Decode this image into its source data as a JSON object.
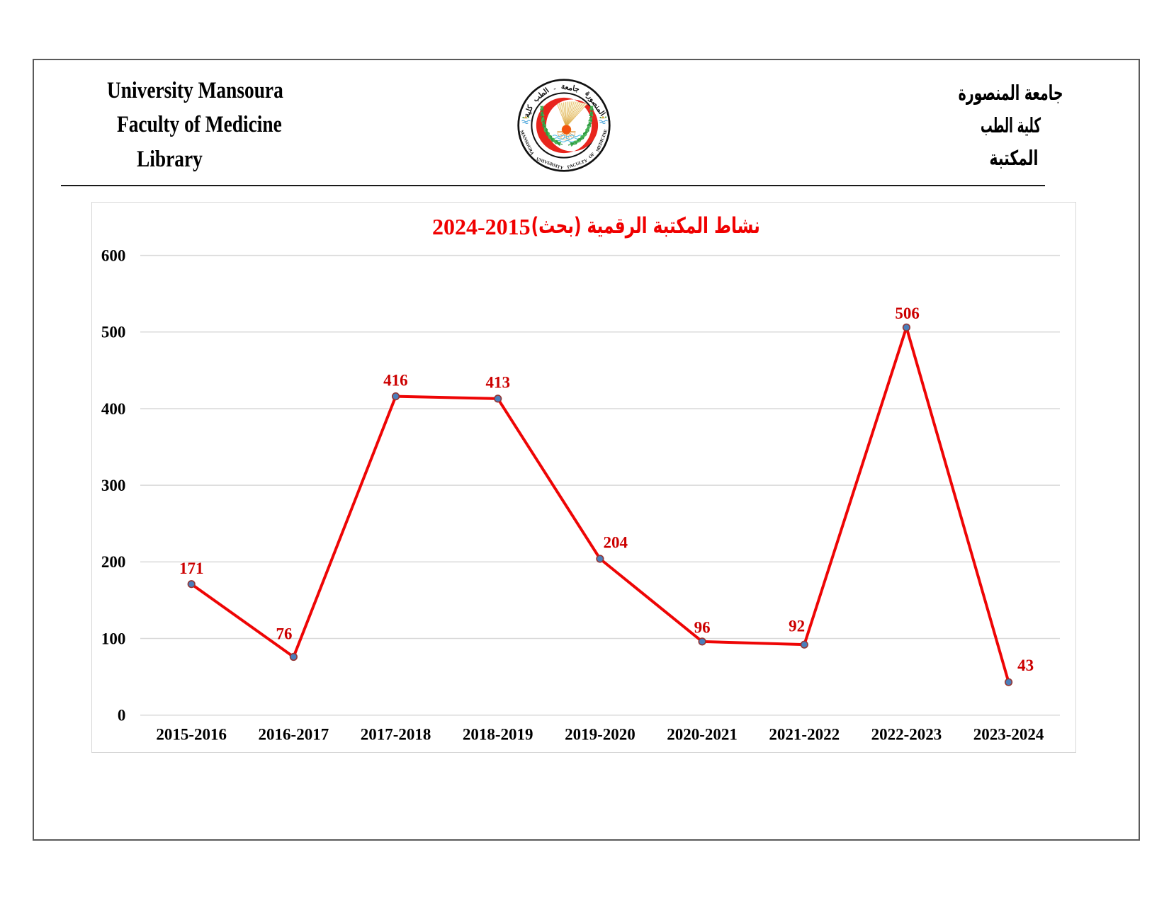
{
  "header": {
    "left_lines": [
      "University Mansoura",
      "Faculty of Medicine",
      "Library"
    ],
    "right_lines": [
      "جامعة المنصورة",
      "كلية الطب",
      "المكتبة"
    ],
    "logo": {
      "arc_text_top": "كلية الطب - جامعة المنصورة",
      "arc_text_bottom": "MANSOURA UNIVERSITY FACULTY OF MEDICINE"
    }
  },
  "chart_data": {
    "type": "line",
    "title": "نشاط المكتبة الرقمية (بحث) 2015-2024",
    "categories": [
      "2015-2016",
      "2016-2017",
      "2017-2018",
      "2018-2019",
      "2019-2020",
      "2020-2021",
      "2021-2022",
      "2022-2023",
      "2023-2024"
    ],
    "values": [
      171,
      76,
      416,
      413,
      204,
      96,
      92,
      506,
      43
    ],
    "y_ticks": [
      0,
      100,
      200,
      300,
      400,
      500,
      600
    ],
    "ylim": [
      0,
      600
    ],
    "grid": true,
    "legend": "none",
    "style": {
      "line_color": "#ee0505",
      "marker_fill": "#4a7ebb",
      "marker_stroke": "#943634",
      "data_label_color": "#cc0000",
      "title_color": "#f00000",
      "grid_color": "#d9d9d9",
      "axis_text_color": "#000000"
    },
    "label_offsets": [
      [
        0,
        0
      ],
      [
        -13.4,
        -10.5
      ],
      [
        -0.2,
        -0.6
      ],
      [
        0,
        -1
      ],
      [
        21.9,
        -1
      ],
      [
        0,
        2.2
      ],
      [
        -10.6,
        -4.2
      ],
      [
        1.2,
        2.2
      ],
      [
        24,
        -1.7
      ]
    ]
  }
}
